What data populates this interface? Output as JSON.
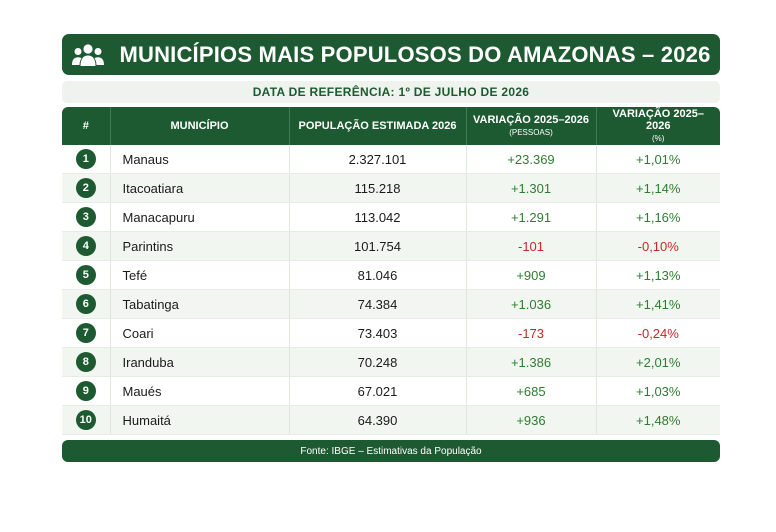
{
  "header": {
    "title": "MUNICÍPIOS MAIS POPULOSOS DO AMAZONAS – 2026",
    "icon": "people-group-icon",
    "subtitle": "DATA DE REFERÊNCIA: 1º DE JULHO DE 2026"
  },
  "colors": {
    "primary": "#1e5a31",
    "positive": "#2e7d32",
    "negative": "#c62828"
  },
  "table": {
    "columns": {
      "rank": "#",
      "city": "MUNICÍPIO",
      "population": "POPULAÇÃO ESTIMADA 2026",
      "abs_change": "VARIAÇÃO 2025–2026",
      "abs_change_sub": "(PESSOAS)",
      "pct_change": "VARIAÇÃO 2025–2026",
      "pct_change_sub": "(%)"
    },
    "rows": [
      {
        "rank": "1",
        "city": "Manaus",
        "population": "2.327.101",
        "abs_change": "+23.369",
        "pct_change": "+1,01%",
        "positive": true
      },
      {
        "rank": "2",
        "city": "Itacoatiara",
        "population": "115.218",
        "abs_change": "+1.301",
        "pct_change": "+1,14%",
        "positive": true
      },
      {
        "rank": "3",
        "city": "Manacapuru",
        "population": "113.042",
        "abs_change": "+1.291",
        "pct_change": "+1,16%",
        "positive": true
      },
      {
        "rank": "4",
        "city": "Parintins",
        "population": "101.754",
        "abs_change": "-101",
        "pct_change": "-0,10%",
        "positive": false
      },
      {
        "rank": "5",
        "city": "Tefé",
        "population": "81.046",
        "abs_change": "+909",
        "pct_change": "+1,13%",
        "positive": true
      },
      {
        "rank": "6",
        "city": "Tabatinga",
        "population": "74.384",
        "abs_change": "+1.036",
        "pct_change": "+1,41%",
        "positive": true
      },
      {
        "rank": "7",
        "city": "Coari",
        "population": "73.403",
        "abs_change": "-173",
        "pct_change": "-0,24%",
        "positive": false
      },
      {
        "rank": "8",
        "city": "Iranduba",
        "population": "70.248",
        "abs_change": "+1.386",
        "pct_change": "+2,01%",
        "positive": true
      },
      {
        "rank": "9",
        "city": "Maués",
        "population": "67.021",
        "abs_change": "+685",
        "pct_change": "+1,03%",
        "positive": true
      },
      {
        "rank": "10",
        "city": "Humaitá",
        "population": "64.390",
        "abs_change": "+936",
        "pct_change": "+1,48%",
        "positive": true
      }
    ]
  },
  "footer": {
    "source": "Fonte: IBGE – Estimativas da População"
  }
}
